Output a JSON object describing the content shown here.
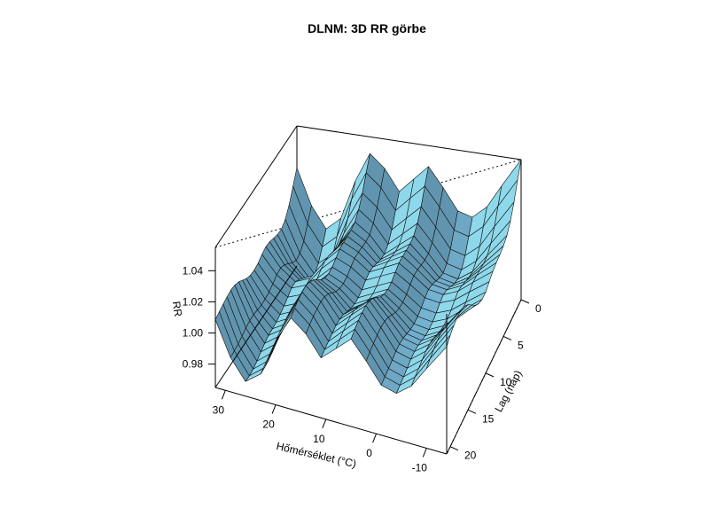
{
  "chart_data": {
    "type": "surface",
    "title": "DLNM: 3D RR görbe",
    "xlabel": "Hőmérséklet (°C)",
    "ylabel": "Lag (nap)",
    "zlabel": "RR",
    "x_ticks": [
      "30",
      "20",
      "10",
      "0",
      "-10"
    ],
    "y_ticks": [
      "0",
      "5",
      "10",
      "15",
      "20"
    ],
    "z_ticks": [
      "0.98",
      "1.00",
      "1.02",
      "1.04"
    ],
    "xlim": [
      -14,
      32
    ],
    "ylim": [
      0,
      21
    ],
    "zlim": [
      0.965,
      1.055
    ],
    "x_grid": [
      32,
      29,
      26,
      23,
      20,
      17,
      14,
      11,
      8,
      5,
      2,
      -1,
      -4,
      -7,
      -10,
      -14
    ],
    "y_grid": [
      0,
      1,
      2,
      3,
      4,
      5,
      6,
      7,
      8,
      9,
      10,
      11,
      12,
      13,
      14,
      15,
      16,
      17,
      18,
      19,
      20,
      21
    ],
    "rr_profile_by_temperature": [
      1.006,
      0.989,
      0.979,
      0.985,
      1.004,
      1.018,
      1.012,
      1.002,
      1.009,
      1.016,
      1.007,
      0.997,
      0.995,
      1.001,
      1.012,
      1.026
    ],
    "rr_profile_by_lag": [
      1.02,
      1.012,
      1.004,
      0.999,
      0.997,
      0.998,
      1.0,
      1.002,
      1.003,
      1.002,
      1.0,
      0.999,
      0.999,
      1.0,
      1.002,
      1.004,
      1.005,
      1.005,
      1.004,
      1.003,
      1.002,
      1.001
    ],
    "surface_color": "#87CEEB",
    "view": {
      "theta_deg": 140,
      "phi_deg": 30
    },
    "grid": false,
    "legend": "none"
  }
}
